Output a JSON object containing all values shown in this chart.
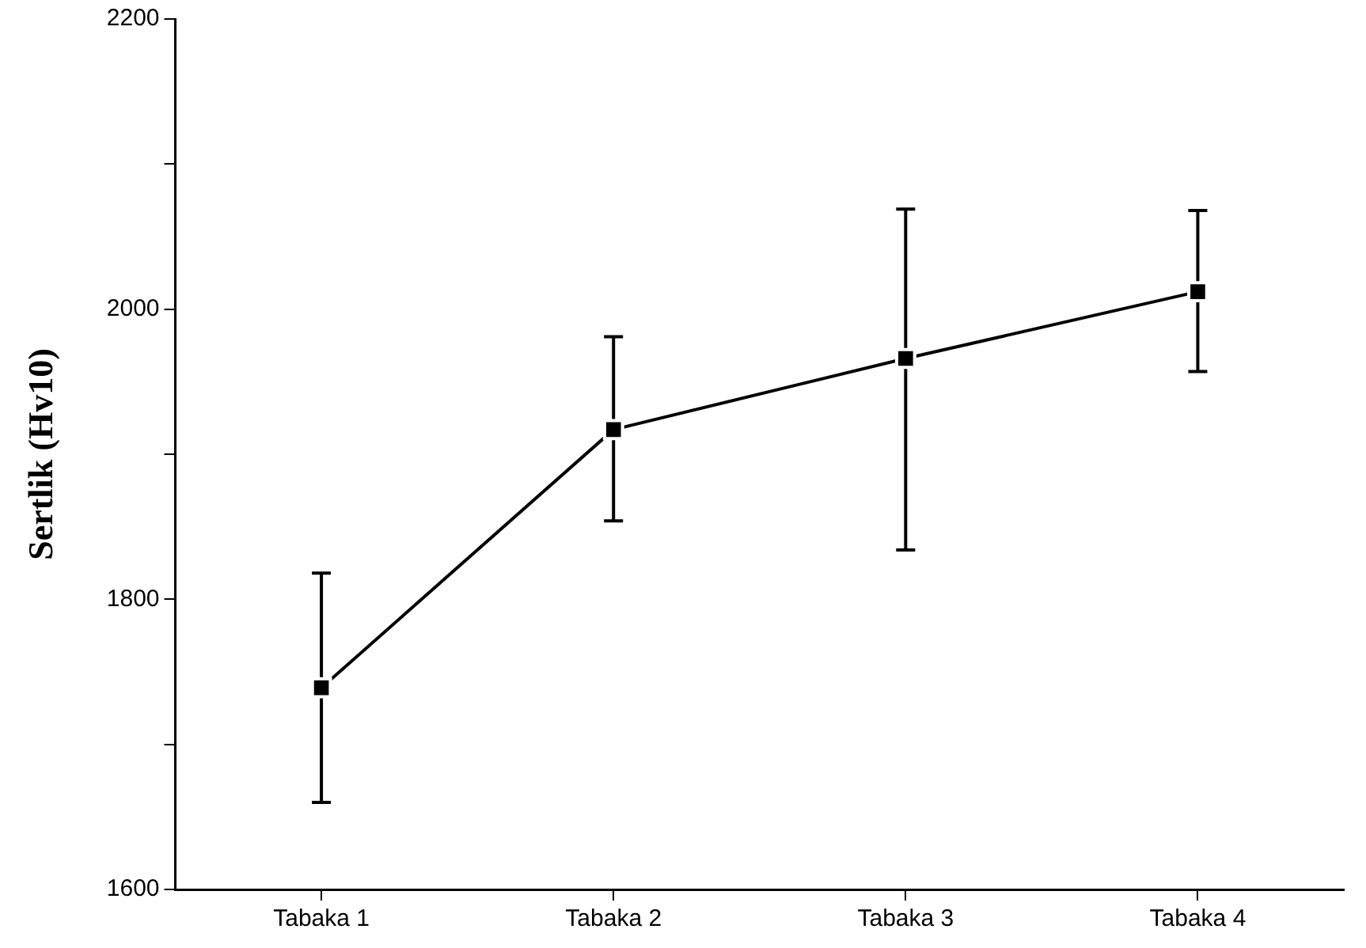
{
  "chart_data": {
    "type": "line",
    "ylabel": "Sertlik (Hv10)",
    "categories": [
      "Tabaka 1",
      "Tabaka 2",
      "Tabaka 3",
      "Tabaka 4"
    ],
    "series": [
      {
        "color": "#000000",
        "values": [
          1739,
          1917,
          1966,
          2012
        ],
        "errors": [
          [
            1660,
            1818
          ],
          [
            1854,
            1981
          ],
          [
            1834,
            2069
          ],
          [
            1957,
            2068
          ]
        ]
      }
    ],
    "ylim": [
      1600,
      2200
    ],
    "yticks": [
      1600,
      {
        "value": 1700,
        "label": null
      },
      1800,
      {
        "value": 1900,
        "label": null
      },
      2000,
      {
        "value": 2100,
        "label": null
      },
      2200
    ],
    "marker": "square",
    "line_style": "solid",
    "grid": false,
    "legend": false
  }
}
